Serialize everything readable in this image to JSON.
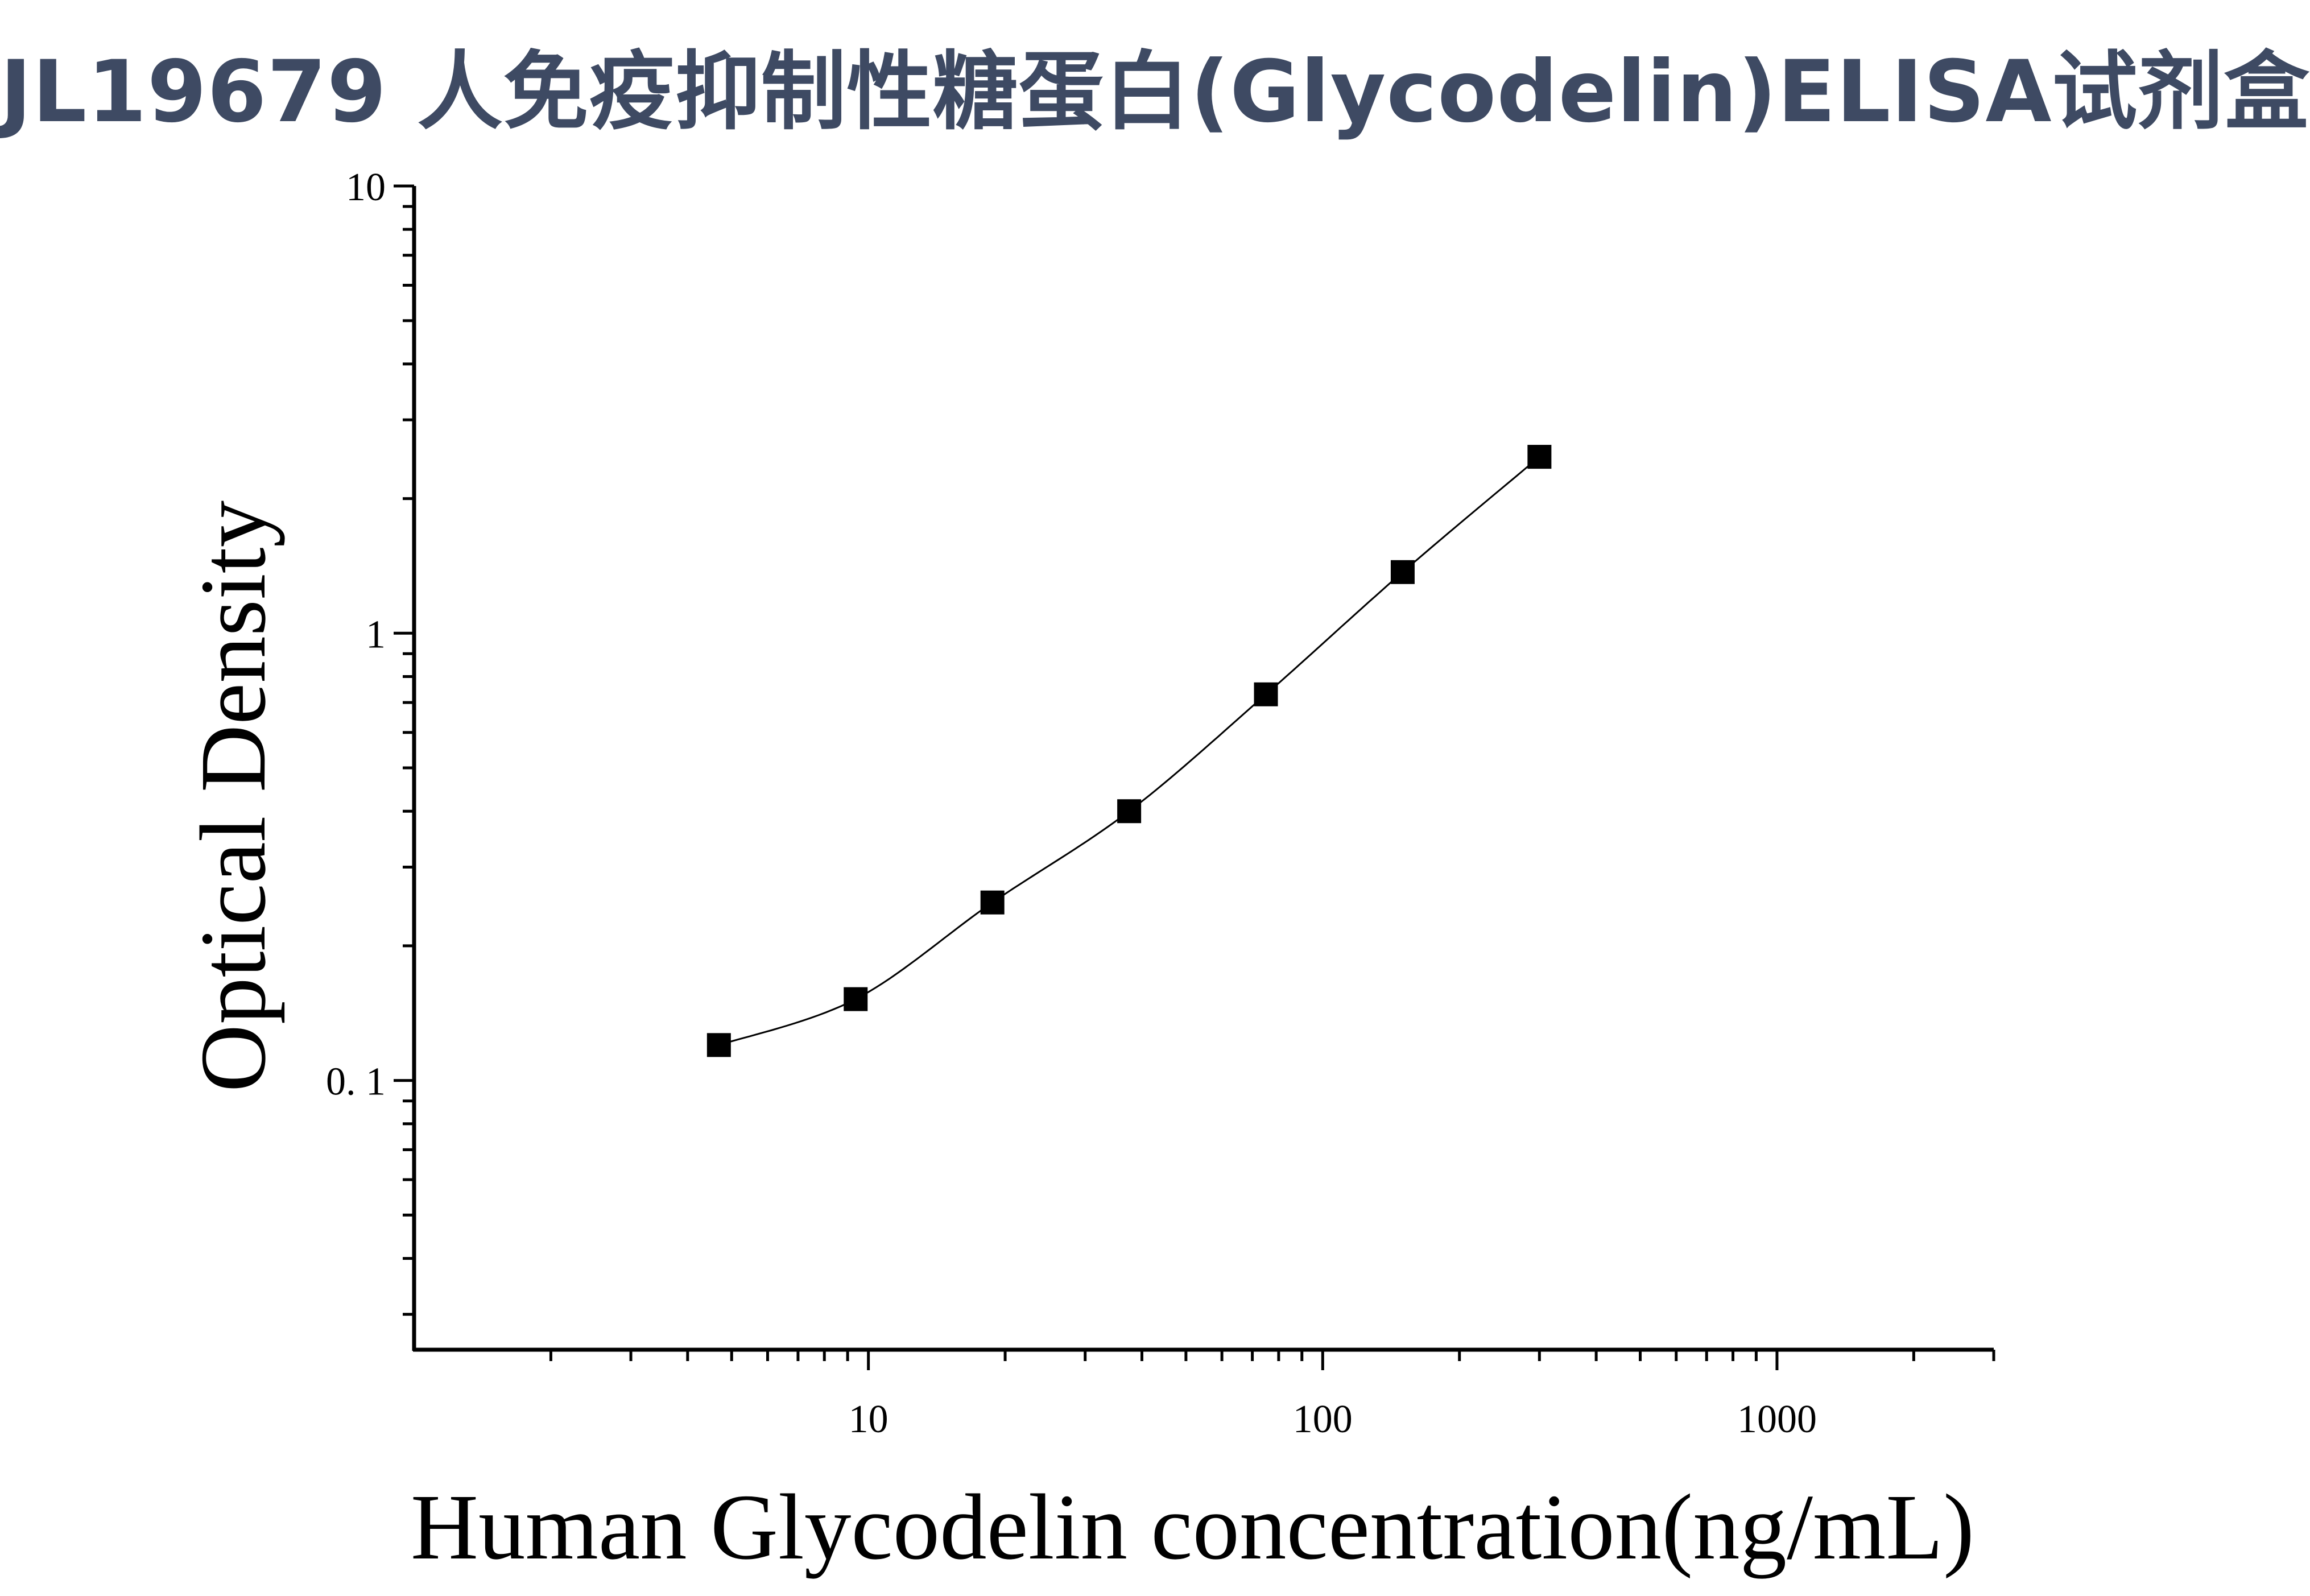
{
  "chart_data": {
    "type": "scatter",
    "title": "JL19679 人免疫抑制性糖蛋白(Glycodelin)ELISA试剂盒",
    "xlabel": "Human Glycodelin concentration(ng/mL)",
    "ylabel": "Optical Density",
    "x_scale": "log",
    "y_scale": "log",
    "xlim": [
      1,
      3000
    ],
    "ylim": [
      0.025,
      10
    ],
    "x_ticks": [
      {
        "value": 10,
        "label": "10"
      },
      {
        "value": 100,
        "label": "100"
      },
      {
        "value": 1000,
        "label": "1000"
      }
    ],
    "y_ticks": [
      {
        "value": 0.1,
        "label": "0. 1"
      },
      {
        "value": 1,
        "label": "1"
      },
      {
        "value": 10,
        "label": "10"
      }
    ],
    "grid": false,
    "legend": "none",
    "marker": "square",
    "marker_color": "#000000",
    "curve": "smooth fitted line through points",
    "x": [
      4.6875,
      9.375,
      18.75,
      37.5,
      75,
      150,
      300
    ],
    "y": [
      0.12,
      0.152,
      0.25,
      0.4,
      0.73,
      1.37,
      2.48
    ]
  }
}
